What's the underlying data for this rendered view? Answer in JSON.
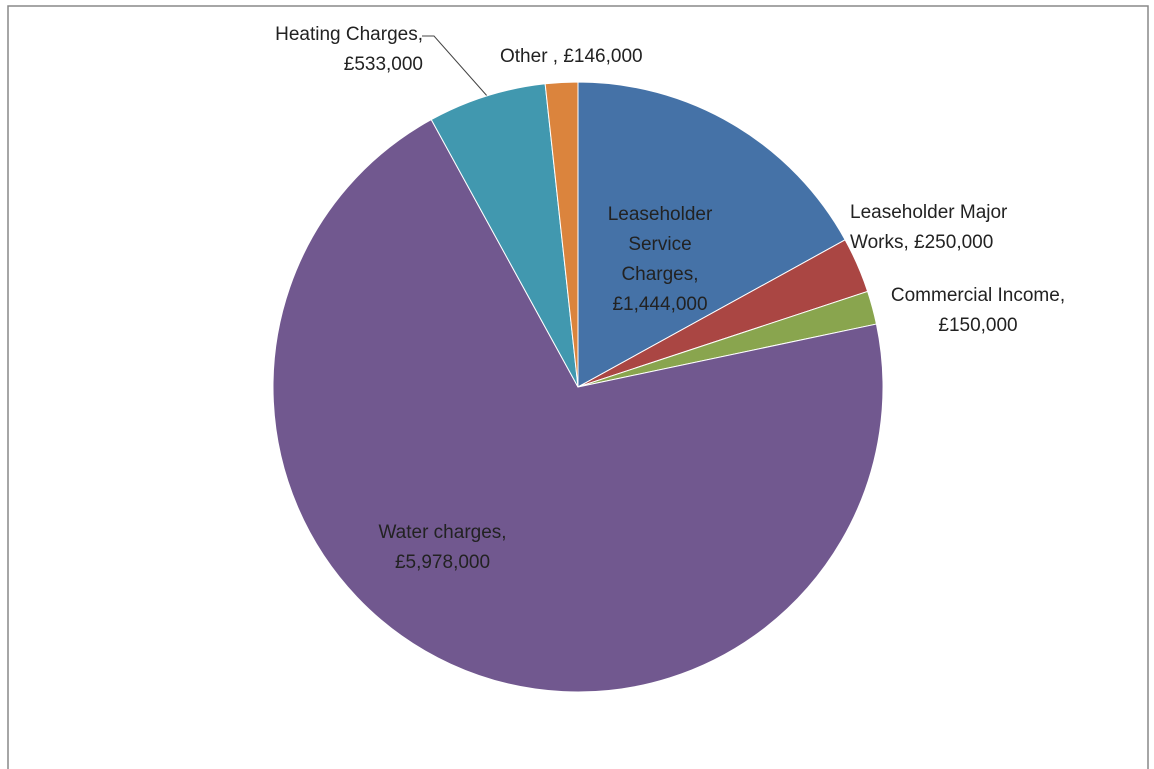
{
  "chart_data": {
    "type": "pie",
    "categories": [
      "Leaseholder Service Charges,",
      "Leaseholder Major Works,",
      "Commercial Income,",
      "Water charges,",
      "Heating Charges,",
      "Other ,"
    ],
    "values": [
      1444000,
      250000,
      150000,
      5978000,
      533000,
      146000
    ],
    "value_labels": [
      "£1,444,000",
      "£250,000",
      "£150,000",
      "£5,978,000",
      "£533,000",
      "£146,000"
    ],
    "colors": [
      "#4572a7",
      "#aa4643",
      "#89a54e",
      "#71588f",
      "#4198af",
      "#db843d"
    ]
  }
}
